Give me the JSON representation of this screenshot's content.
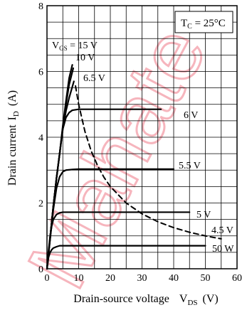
{
  "chart_data": {
    "type": "line",
    "title": "",
    "xlabel": "Drain-source voltage",
    "xlabel_symbol": "V",
    "xlabel_sub": "DS",
    "xlabel_unit": "(V)",
    "ylabel": "Drain current",
    "ylabel_symbol": "I",
    "ylabel_sub": "D",
    "ylabel_unit": "(A)",
    "xlim": [
      0,
      60
    ],
    "ylim": [
      0,
      8
    ],
    "x_ticks": [
      0,
      10,
      20,
      30,
      40,
      50,
      60
    ],
    "y_ticks": [
      0,
      2,
      4,
      6,
      8
    ],
    "x_tick_labels": [
      "0",
      "10",
      "20",
      "30",
      "40",
      "50",
      "60"
    ],
    "y_tick_labels": [
      "0",
      "2",
      "4",
      "6",
      "8"
    ],
    "grid": true,
    "annotation": {
      "text_main": "T",
      "text_sub": "C",
      "text_rest": " = 25°C"
    },
    "series": [
      {
        "name": "V_GS = 15 V",
        "label_main": "V",
        "label_sub": "GS",
        "label_rest": " = 15 V",
        "x": [
          0,
          1,
          2,
          3,
          4,
          5,
          6,
          7,
          8
        ],
        "y": [
          0,
          0.95,
          1.9,
          2.75,
          3.5,
          4.35,
          5.1,
          5.8,
          6.2
        ]
      },
      {
        "name": "10 V",
        "label_main": "10 V",
        "label_sub": "",
        "label_rest": "",
        "x": [
          0,
          1,
          2,
          3,
          4,
          5,
          6,
          7,
          8.3
        ],
        "y": [
          0,
          0.95,
          1.9,
          2.75,
          3.5,
          4.3,
          5.0,
          5.6,
          6.1
        ]
      },
      {
        "name": "6.5 V",
        "label_main": "6.5 V",
        "label_sub": "",
        "label_rest": "",
        "x": [
          0,
          1,
          2,
          3,
          4,
          5,
          6,
          7,
          8.5
        ],
        "y": [
          0,
          0.95,
          1.9,
          2.75,
          3.5,
          4.25,
          4.8,
          5.2,
          5.7
        ]
      },
      {
        "name": "6 V",
        "label_main": "6 V",
        "label_sub": "",
        "label_rest": "",
        "x": [
          0,
          1,
          2,
          3,
          4,
          5,
          6,
          7,
          8,
          10,
          15,
          20,
          25,
          30,
          36
        ],
        "y": [
          0,
          0.95,
          1.9,
          2.75,
          3.5,
          4.25,
          4.6,
          4.75,
          4.82,
          4.85,
          4.85,
          4.85,
          4.85,
          4.85,
          4.85
        ]
      },
      {
        "name": "5.5 V",
        "label_main": "5.5 V",
        "label_sub": "",
        "label_rest": "",
        "x": [
          0,
          1,
          2,
          3,
          4,
          5,
          6,
          8,
          10,
          20,
          30,
          40
        ],
        "y": [
          0,
          0.9,
          1.8,
          2.45,
          2.8,
          2.95,
          3.0,
          3.02,
          3.03,
          3.03,
          3.03,
          3.03
        ]
      },
      {
        "name": "5 V",
        "label_main": "5 V",
        "label_sub": "",
        "label_rest": "",
        "x": [
          0,
          0.5,
          1,
          1.5,
          2,
          3,
          4,
          5,
          10,
          20,
          30,
          40,
          45
        ],
        "y": [
          0,
          0.55,
          1.0,
          1.3,
          1.5,
          1.65,
          1.7,
          1.72,
          1.72,
          1.72,
          1.72,
          1.72,
          1.72
        ]
      },
      {
        "name": "4.5 V",
        "label_main": "4.5 V",
        "label_sub": "",
        "label_rest": "",
        "x": [
          0,
          0.5,
          1,
          1.5,
          2,
          3,
          4,
          6,
          10,
          20,
          30,
          40,
          50
        ],
        "y": [
          0,
          0.35,
          0.5,
          0.58,
          0.63,
          0.67,
          0.7,
          0.7,
          0.7,
          0.7,
          0.7,
          0.7,
          0.7
        ]
      },
      {
        "name": "50 W",
        "label_main": "50 W",
        "label_sub": "",
        "label_rest": "",
        "dashed": true,
        "x": [
          9,
          10,
          12,
          14,
          16,
          18,
          20,
          25,
          30,
          35,
          40,
          45,
          50,
          55
        ],
        "y": [
          5.56,
          5.0,
          4.17,
          3.57,
          3.13,
          2.78,
          2.5,
          2.0,
          1.67,
          1.43,
          1.25,
          1.11,
          1.0,
          0.91
        ]
      }
    ]
  },
  "watermark_text": "Mahate"
}
